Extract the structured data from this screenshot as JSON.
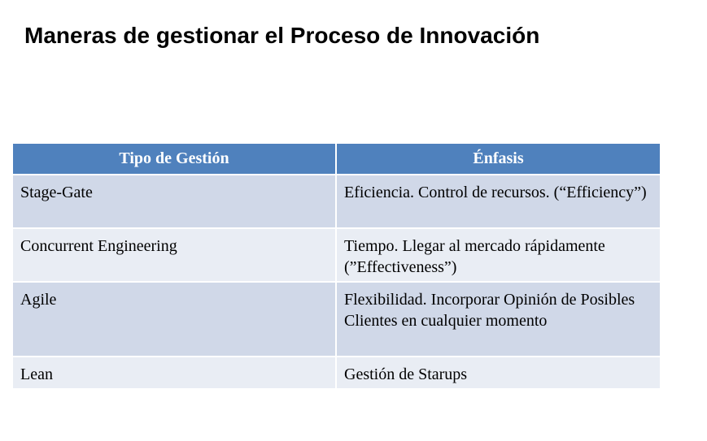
{
  "slide": {
    "title": "Maneras de gestionar el Proceso de Innovación"
  },
  "table": {
    "headers": [
      "Tipo de Gestión",
      "Énfasis"
    ],
    "rows": [
      {
        "tipo": "Stage-Gate",
        "enfasis": "Eficiencia. Control de recursos. (“Efficiency”)"
      },
      {
        "tipo": "Concurrent Engineering",
        "enfasis": "Tiempo. Llegar al mercado rápidamente (”Effectiveness”)"
      },
      {
        "tipo": "Agile",
        "enfasis": "Flexibilidad. Incorporar Opinión de Posibles Clientes en cualquier momento"
      },
      {
        "tipo": "Lean",
        "enfasis": "Gestión de Starups"
      }
    ]
  }
}
